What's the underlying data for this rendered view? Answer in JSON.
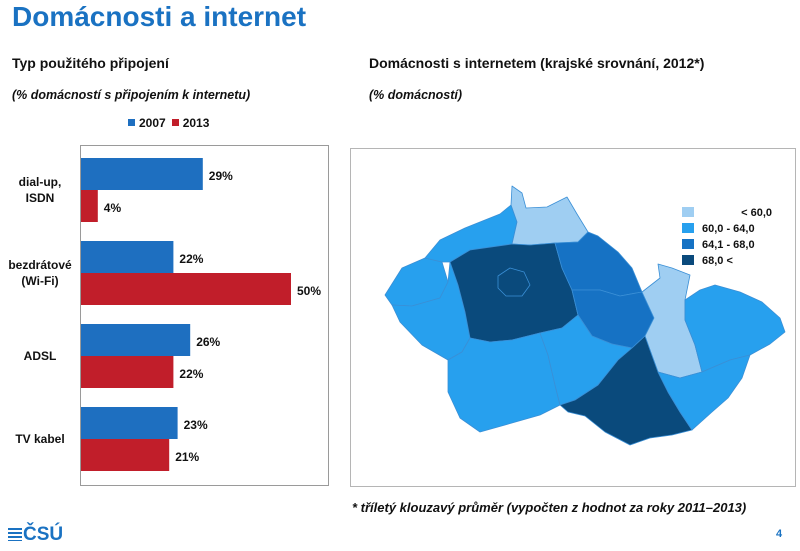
{
  "title": "Domácnosti a internet",
  "left_panel": {
    "heading": "Typ použitého připojení",
    "subheading": "(% domácností s připojením k internetu)"
  },
  "right_panel": {
    "heading": "Domácnosti s internetem (krajské srovnání, 2012*)",
    "subheading": "(% domácností)"
  },
  "colors": {
    "series_2007": "#1e6fc0",
    "series_2013": "#c11e2a",
    "title": "#1a72c2"
  },
  "chart_data": {
    "type": "bar",
    "orientation": "horizontal",
    "categories": [
      "dial-up,\nISDN",
      "bezdrátové\n(Wi-Fi)",
      "ADSL",
      "TV kabel"
    ],
    "series": [
      {
        "name": "2007",
        "color": "#1e6fc0",
        "values": [
          29,
          22,
          26,
          23
        ],
        "labels": [
          "29%",
          "22%",
          "26%",
          "23%"
        ]
      },
      {
        "name": "2013",
        "color": "#c11e2a",
        "values": [
          4,
          50,
          22,
          21
        ],
        "labels": [
          "4%",
          "50%",
          "22%",
          "21%"
        ]
      }
    ],
    "xlim": [
      0,
      70
    ],
    "legend": "top",
    "grid": false
  },
  "map_legend": [
    {
      "label": "< 60,0",
      "color": "#9fcef2"
    },
    {
      "label": "60,0 - 64,0",
      "color": "#27a0ee"
    },
    {
      "label": "64,1 - 68,0",
      "color": "#1672c4"
    },
    {
      "label": "68,0 <",
      "color": "#0a4a7c"
    }
  ],
  "map": {
    "class_colors": [
      "#9fcef2",
      "#27a0ee",
      "#1672c4",
      "#0a4a7c"
    ],
    "regions": [
      {
        "name": "karlovarsky",
        "class": 1
      },
      {
        "name": "ustecky",
        "class": 1
      },
      {
        "name": "liberecky",
        "class": 0
      },
      {
        "name": "plzensky",
        "class": 1
      },
      {
        "name": "stredocesky",
        "class": 3
      },
      {
        "name": "praha",
        "class": 3
      },
      {
        "name": "kralovehradecky",
        "class": 2
      },
      {
        "name": "pardubicky",
        "class": 2
      },
      {
        "name": "jihocesky",
        "class": 1
      },
      {
        "name": "vysocina",
        "class": 1
      },
      {
        "name": "olomoucky",
        "class": 0
      },
      {
        "name": "moravskoslezsky",
        "class": 1
      },
      {
        "name": "jihomoravsky",
        "class": 3
      },
      {
        "name": "zlinsky",
        "class": 1
      }
    ]
  },
  "footnote": "* tříletý klouzavý průměr (vypočten z hodnot za roky 2011–2013)",
  "logo": "ČSÚ",
  "page_number": "4"
}
